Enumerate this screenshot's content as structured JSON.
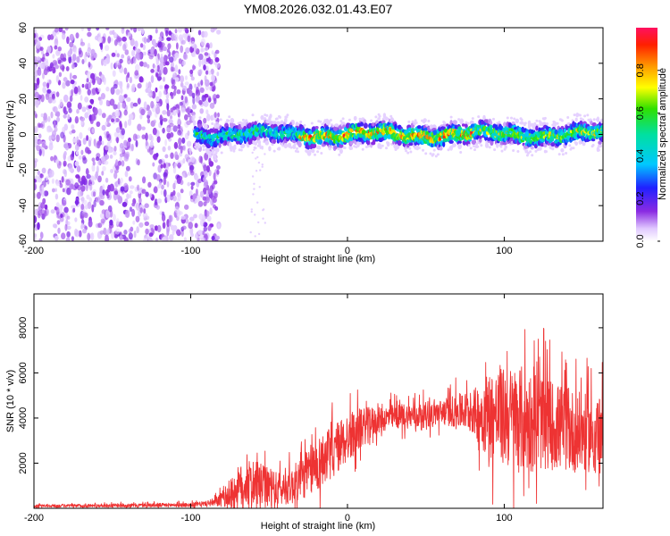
{
  "title": "YM08.2026.032.01.43.E07",
  "chart_data": [
    {
      "type": "heatmap",
      "name": "spectrogram",
      "xlabel": "Height of straight line (km)",
      "ylabel": "Frequency (Hz)",
      "xlim": [
        -200,
        163
      ],
      "ylim": [
        -60,
        60
      ],
      "xticks": [
        -200,
        -100,
        0,
        100
      ],
      "yticks": [
        -60,
        -40,
        -20,
        0,
        20,
        40,
        60
      ],
      "xtick_labels": [
        "-200",
        "-100",
        "0",
        "100"
      ],
      "ytick_labels": [
        "-60",
        "-40",
        "-20",
        "0",
        "20",
        "40",
        "60"
      ],
      "noise_region_x": [
        -200,
        -88
      ],
      "signal_region_x": [
        -97,
        163
      ],
      "signal_center_freq": 0,
      "signal_band_halfwidth": 6,
      "colorbar": {
        "label": "Normalized spectral amplitude",
        "range": [
          0.0,
          1.0
        ],
        "ticks": [
          0.0,
          0.2,
          0.4,
          0.6,
          0.8
        ],
        "tick_labels": [
          "0.0",
          "0.2",
          "0.4",
          "0.6",
          "0.8"
        ],
        "colormap": "rainbow (white-purple-blue-cyan-green-yellow-red)"
      }
    },
    {
      "type": "line",
      "name": "snr",
      "xlabel": "Height of straight line (km)",
      "ylabel": "SNR (10 * v/v)",
      "xlim": [
        -200,
        163
      ],
      "ylim": [
        0,
        9500
      ],
      "xticks": [
        -200,
        -100,
        0,
        100
      ],
      "yticks": [
        2000,
        4000,
        6000,
        8000
      ],
      "xtick_labels": [
        "-200",
        "-100",
        "0",
        "100"
      ],
      "ytick_labels": [
        "2000",
        "4000",
        "6000",
        "8000"
      ],
      "color": "#ee3333",
      "trend_x": [
        -200,
        -100,
        -85,
        -75,
        -65,
        -55,
        -45,
        -35,
        -25,
        -15,
        -5,
        5,
        15,
        25,
        35,
        45,
        55,
        65,
        75,
        85,
        95,
        105,
        115,
        125,
        135,
        145,
        155,
        163
      ],
      "trend_y": [
        100,
        150,
        250,
        600,
        1100,
        1000,
        800,
        1000,
        1600,
        2200,
        2800,
        3400,
        3800,
        4000,
        4100,
        4100,
        4200,
        4300,
        4300,
        4200,
        4100,
        4000,
        3900,
        3800,
        3600,
        3400,
        3300,
        3300
      ],
      "noise_amplitude_x": [
        -200,
        -90,
        -80,
        -70,
        -60,
        -40,
        -20,
        0,
        20,
        60,
        80,
        90,
        110,
        130,
        163
      ],
      "noise_amplitude_y": [
        80,
        120,
        400,
        1200,
        1300,
        900,
        1500,
        1400,
        700,
        700,
        1200,
        2500,
        3000,
        2500,
        2000
      ]
    }
  ]
}
